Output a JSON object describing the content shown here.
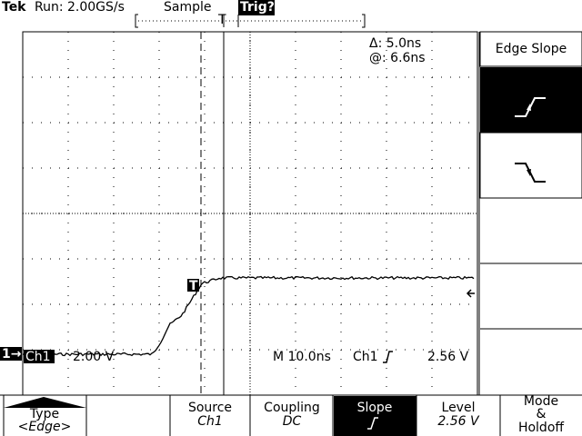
{
  "header": {
    "brand": "Tek",
    "run": "Run: 2.00GS/s",
    "acquisition": "Sample",
    "trigger_state": "Trig?",
    "trigger_marker": "T"
  },
  "cursor_readout": {
    "delta": "Δ: 5.0ns",
    "at": "@: 6.6ns"
  },
  "waveform": {
    "trigger_point": "T",
    "ground_marker": "1→"
  },
  "readout": {
    "channel": "Ch1",
    "vertical_scale": "2.00 V",
    "timebase": "M 10.0ns",
    "trigger_source": "Ch1",
    "trigger_level": "2.56 V"
  },
  "side_menu": {
    "title": "Edge Slope"
  },
  "bottom_menu": [
    {
      "label": "Type",
      "value": "<Edge>"
    },
    {
      "label": "Source",
      "value": "Ch1"
    },
    {
      "label": "Coupling",
      "value": "DC"
    },
    {
      "label": "Slope"
    },
    {
      "label": "Level",
      "value": "2.56 V"
    },
    {
      "lines": [
        "Mode",
        "&",
        "Holdoff"
      ]
    }
  ]
}
